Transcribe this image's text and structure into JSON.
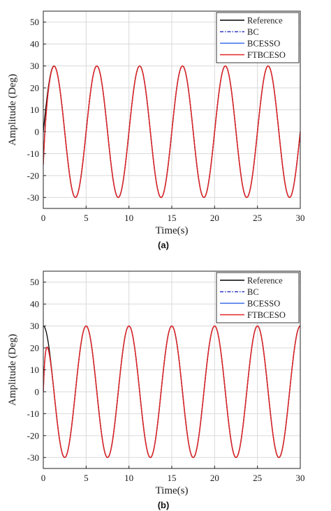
{
  "colors": {
    "reference": "#000000",
    "bc": "#2a35c8",
    "bcesso": "#3f6ee8",
    "ftbceso": "#e32626"
  },
  "chart_data": [
    {
      "type": "line",
      "panel_label": "(a)",
      "xlabel": "Time(s)",
      "ylabel": "Amplitude (Deg)",
      "xlim": [
        0,
        30
      ],
      "ylim": [
        -35,
        55
      ],
      "xticks": [
        0,
        5,
        10,
        15,
        20,
        25,
        30
      ],
      "yticks": [
        -30,
        -20,
        -10,
        0,
        10,
        20,
        30,
        40,
        50
      ],
      "grid": true,
      "legend_position": "top-right",
      "reference_signal": {
        "amplitude": 30,
        "period": 5,
        "phase_deg": 0
      },
      "series": [
        {
          "name": "Reference",
          "style": "solid",
          "color_key": "reference",
          "x": [
            0,
            1.25,
            3.75,
            6.25,
            8.75,
            11.25,
            13.75,
            16.25,
            18.75,
            21.25,
            23.75,
            26.25,
            28.75,
            30
          ],
          "y": [
            0,
            30,
            -30,
            30,
            -30,
            30,
            -30,
            30,
            -30,
            30,
            -30,
            30,
            -30,
            0
          ]
        },
        {
          "name": "BC",
          "style": "dashdot",
          "color_key": "bc",
          "x": [
            0,
            1.25,
            3.75,
            6.25,
            8.75,
            11.25,
            13.75,
            16.25,
            18.75,
            21.25,
            23.75,
            26.25,
            28.75,
            30
          ],
          "y": [
            -15,
            30,
            -30,
            30,
            -30,
            30,
            -30,
            30,
            -30,
            30,
            -30,
            30,
            -30,
            0
          ]
        },
        {
          "name": "BCESSO",
          "style": "solid",
          "color_key": "bcesso",
          "x": [
            0,
            1.25,
            3.75,
            6.25,
            8.75,
            11.25,
            13.75,
            16.25,
            18.75,
            21.25,
            23.75,
            26.25,
            28.75,
            30
          ],
          "y": [
            -15,
            30,
            -30,
            30,
            -30,
            30,
            -30,
            30,
            -30,
            30,
            -30,
            30,
            -30,
            0
          ]
        },
        {
          "name": "FTBCESO",
          "style": "solid",
          "color_key": "ftbceso",
          "x": [
            0,
            1.25,
            3.75,
            6.25,
            8.75,
            11.25,
            13.75,
            16.25,
            18.75,
            21.25,
            23.75,
            26.25,
            28.75,
            30
          ],
          "y": [
            -15,
            30,
            -30,
            30,
            -30,
            30,
            -30,
            30,
            -30,
            30,
            -30,
            30,
            -30,
            0
          ]
        }
      ]
    },
    {
      "type": "line",
      "panel_label": "(b)",
      "xlabel": "Time(s)",
      "ylabel": "Amplitude (Deg)",
      "xlim": [
        0,
        30
      ],
      "ylim": [
        -35,
        55
      ],
      "xticks": [
        0,
        5,
        10,
        15,
        20,
        25,
        30
      ],
      "yticks": [
        -30,
        -20,
        -10,
        0,
        10,
        20,
        30,
        40,
        50
      ],
      "grid": true,
      "legend_position": "top-right",
      "reference_signal": {
        "amplitude": 30,
        "period": 5,
        "phase_deg": 90
      },
      "series": [
        {
          "name": "Reference",
          "style": "solid",
          "color_key": "reference",
          "x": [
            0,
            0.5,
            3,
            5.5,
            8,
            10.5,
            13,
            15.5,
            18,
            20.5,
            23,
            25.5,
            28,
            30
          ],
          "y": [
            30,
            30,
            -30,
            30,
            -30,
            30,
            -30,
            30,
            -30,
            30,
            -30,
            30,
            -30,
            26
          ]
        },
        {
          "name": "BC",
          "style": "dashdot",
          "color_key": "bc",
          "x": [
            0,
            0.6,
            3,
            5.5,
            8,
            10.5,
            13,
            15.5,
            18,
            20.5,
            23,
            25.5,
            28,
            30
          ],
          "y": [
            0,
            26,
            -30,
            30,
            -30,
            30,
            -30,
            30,
            -30,
            30,
            -30,
            30,
            -30,
            26
          ]
        },
        {
          "name": "BCESSO",
          "style": "solid",
          "color_key": "bcesso",
          "x": [
            0,
            0.6,
            3,
            5.5,
            8,
            10.5,
            13,
            15.5,
            18,
            20.5,
            23,
            25.5,
            28,
            30
          ],
          "y": [
            0,
            26,
            -30,
            30,
            -30,
            30,
            -30,
            30,
            -30,
            30,
            -30,
            30,
            -30,
            26
          ]
        },
        {
          "name": "FTBCESO",
          "style": "solid",
          "color_key": "ftbceso",
          "x": [
            0,
            0.6,
            3,
            5.5,
            8,
            10.5,
            13,
            15.5,
            18,
            20.5,
            23,
            25.5,
            28,
            30
          ],
          "y": [
            0,
            26,
            -30,
            30,
            -30,
            30,
            -30,
            30,
            -30,
            30,
            -30,
            30,
            -30,
            26
          ]
        }
      ]
    }
  ]
}
